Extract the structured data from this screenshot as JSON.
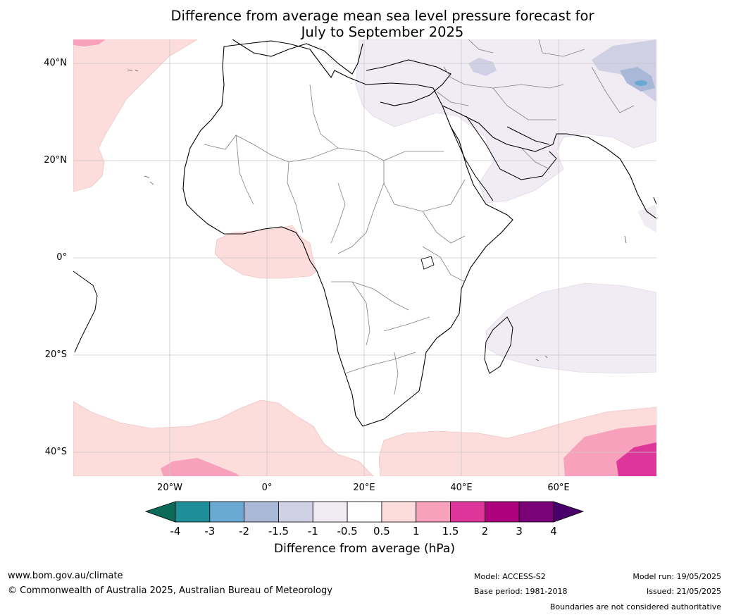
{
  "title": {
    "line1": "Difference from average mean sea level pressure forecast for",
    "line2": "July to September 2025"
  },
  "map": {
    "lat_labels": [
      "40°N",
      "20°N",
      "0°",
      "20°S",
      "40°S"
    ],
    "lon_labels": [
      "20°W",
      "0°",
      "20°E",
      "40°E",
      "60°E"
    ],
    "ocean_color": "#ffffff",
    "coast_color": "#000000",
    "border_color": "#808080"
  },
  "colorbar": {
    "ticks": [
      "-4",
      "-3",
      "-2",
      "-1.5",
      "-1",
      "-0.5",
      "0.5",
      "1",
      "1.5",
      "2",
      "3",
      "4"
    ],
    "colors": [
      "#0e7a6b",
      "#1e8f98",
      "#6aa9d1",
      "#a9b8d6",
      "#cfd0e4",
      "#f1ecf4",
      "#ffffff",
      "#fddcdc",
      "#f7a1bd",
      "#dd3599",
      "#ae017e",
      "#7a0177"
    ],
    "under_color": "#0b6b58",
    "over_color": "#49006a",
    "label": "Difference from average (hPa)"
  },
  "footer": {
    "website": "www.bom.gov.au/climate",
    "copyright": "© Commonwealth of Australia 2025, Australian Bureau of Meteorology",
    "model": "Model: ACCESS-S2",
    "base_period": "Base period: 1981-2018",
    "model_run": "Model run: 19/05/2025",
    "issued": "Issued: 21/05/2025",
    "disclaimer": "Boundaries are not considered authoritative"
  }
}
